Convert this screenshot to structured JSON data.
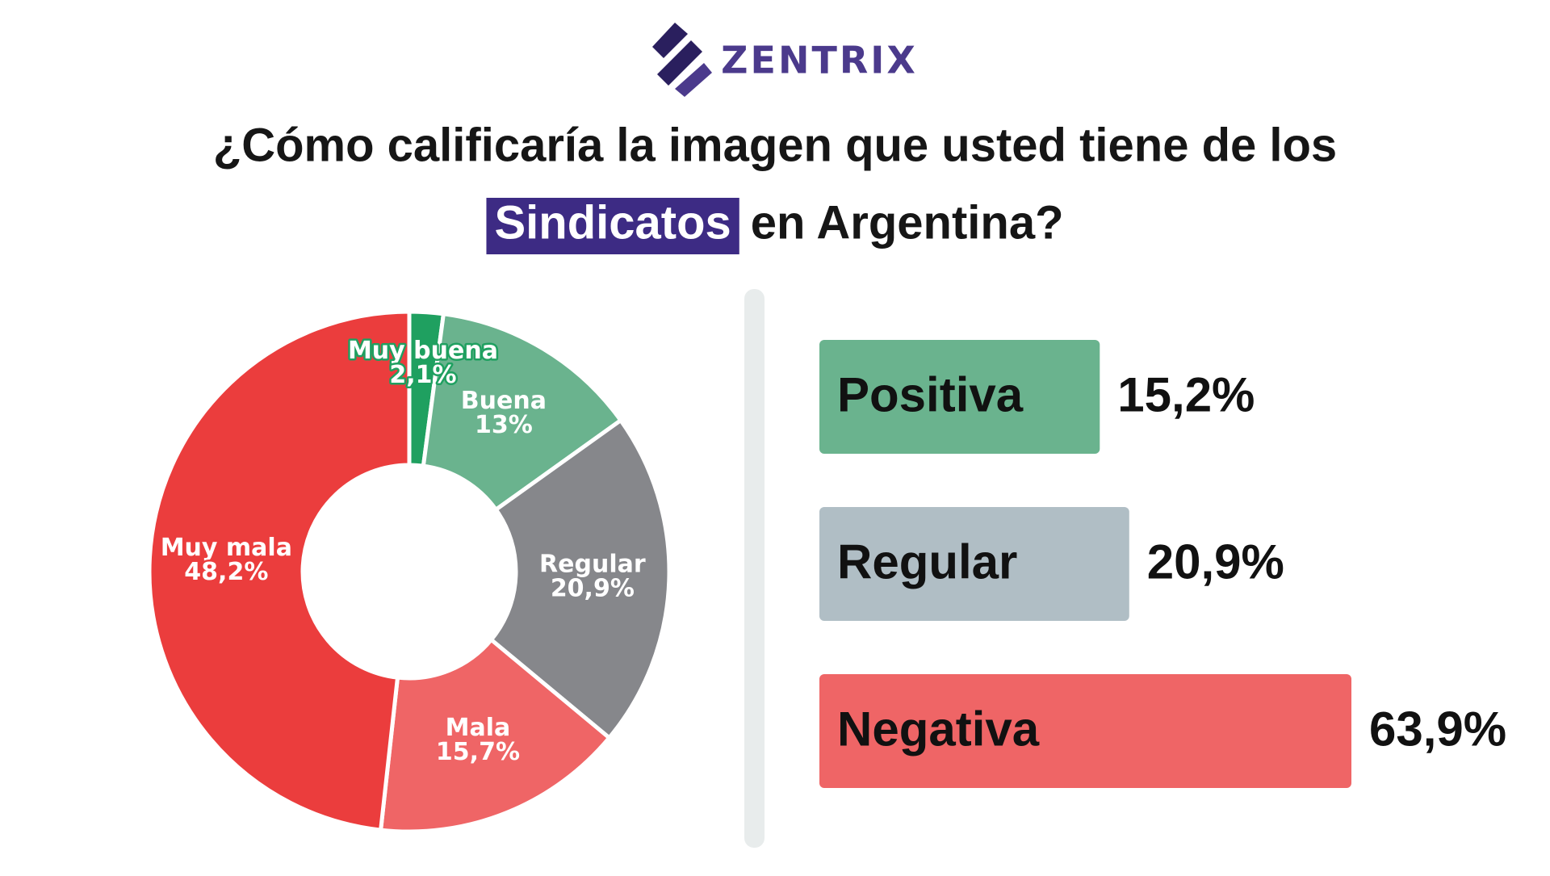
{
  "header": {
    "logo": "ZENTRIX",
    "title": [
      "¿Cómo calificaría la imagen que usted tiene de los",
      "Sindicatos",
      "en Argentina?"
    ]
  },
  "chart_data": [
    {
      "type": "donut",
      "categories": [
        "Muy buena",
        "Buena",
        "Regular",
        "Mala",
        "Muy mala"
      ],
      "values": [
        2.1,
        13,
        20.9,
        15.7,
        48.2
      ],
      "value_labels": [
        "2,1%",
        "13%",
        "20,9%",
        "15,7%",
        "48,2%"
      ],
      "colors": [
        "#1fa060",
        "#6ab38e",
        "#86878b",
        "#ef6566",
        "#eb3d3d"
      ]
    },
    {
      "type": "bar",
      "orientation": "horizontal",
      "categories": [
        "Positiva",
        "Regular",
        "Negativa"
      ],
      "values": [
        15.2,
        20.9,
        63.9
      ],
      "value_labels": [
        "15,2%",
        "20,9%",
        "63,9%"
      ],
      "colors": [
        "#6ab38e",
        "#b0bec5",
        "#ef6566"
      ]
    }
  ]
}
